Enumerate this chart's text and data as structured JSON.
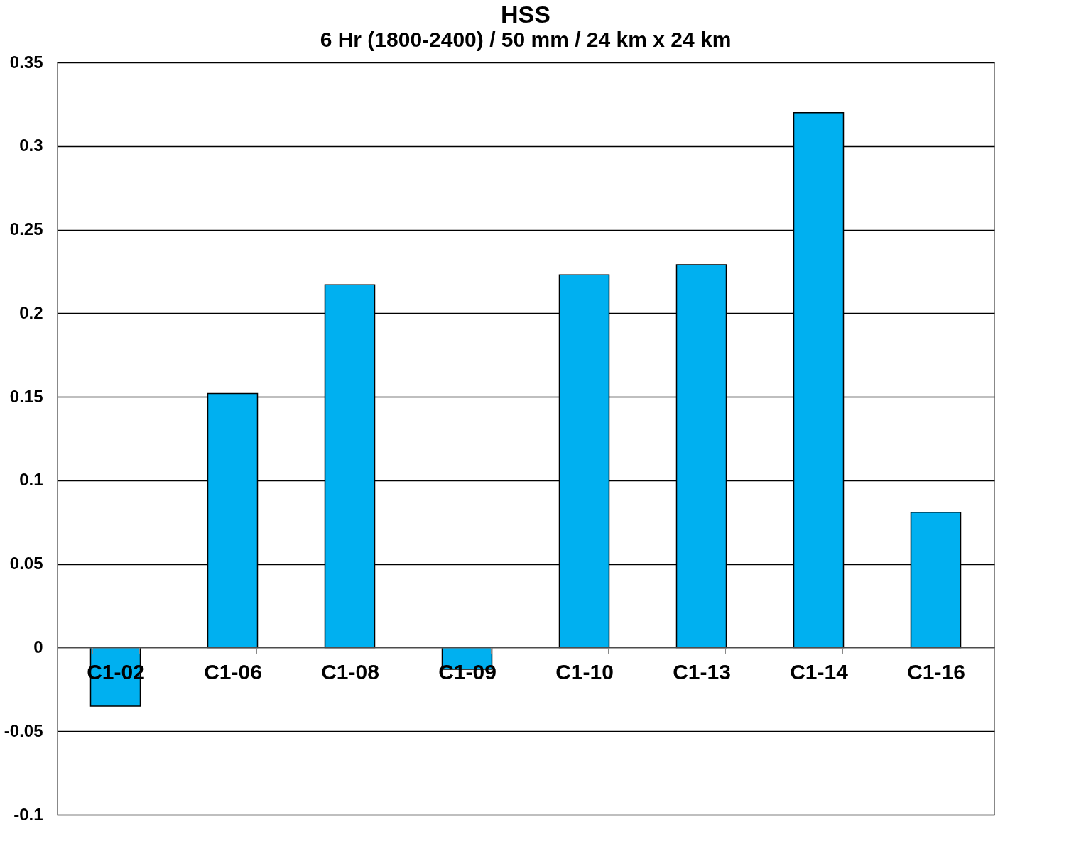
{
  "chart_data": {
    "type": "bar",
    "title": "HSS",
    "subtitle": "6 Hr (1800-2400) / 50 mm / 24 km x 24 km",
    "categories": [
      "C1-02",
      "C1-06",
      "C1-08",
      "C1-09",
      "C1-10",
      "C1-13",
      "C1-14",
      "C1-16"
    ],
    "values": [
      -0.035,
      0.152,
      0.217,
      -0.013,
      0.223,
      0.229,
      0.32,
      0.081
    ],
    "color": "#00b0f0",
    "ylim": [
      -0.1,
      0.35
    ],
    "yticks": [
      -0.1,
      -0.05,
      0,
      0.05,
      0.1,
      0.15,
      0.2,
      0.25,
      0.3,
      0.35
    ],
    "grid": "y"
  }
}
